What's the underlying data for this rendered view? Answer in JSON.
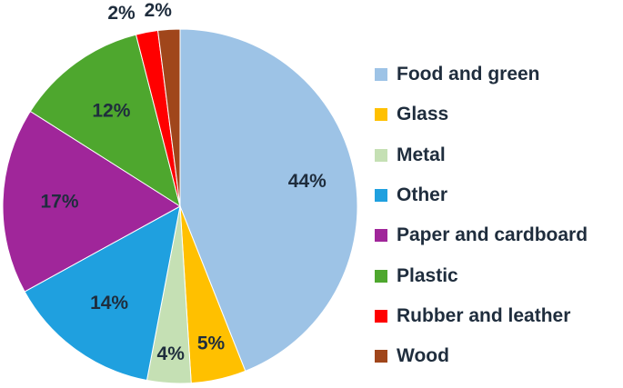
{
  "chart_data": {
    "type": "pie",
    "title": "",
    "legend_position": "right",
    "start_angle_deg": 0,
    "direction": "clockwise",
    "slices": [
      {
        "label": "Food and green",
        "value": 44,
        "display": "44%",
        "color": "#9dc3e6"
      },
      {
        "label": "Glass",
        "value": 5,
        "display": "5%",
        "color": "#ffc000"
      },
      {
        "label": "Metal",
        "value": 4,
        "display": "4%",
        "color": "#c5e0b4"
      },
      {
        "label": "Other",
        "value": 14,
        "display": "14%",
        "color": "#1fa0df"
      },
      {
        "label": "Paper and cardboard",
        "value": 17,
        "display": "17%",
        "color": "#a0269a"
      },
      {
        "label": "Plastic",
        "value": 12,
        "display": "12%",
        "color": "#4ea72e"
      },
      {
        "label": "Rubber and leather",
        "value": 2,
        "display": "2%",
        "color": "#ff0000"
      },
      {
        "label": "Wood",
        "value": 2,
        "display": "2%",
        "color": "#a0461b"
      }
    ]
  }
}
